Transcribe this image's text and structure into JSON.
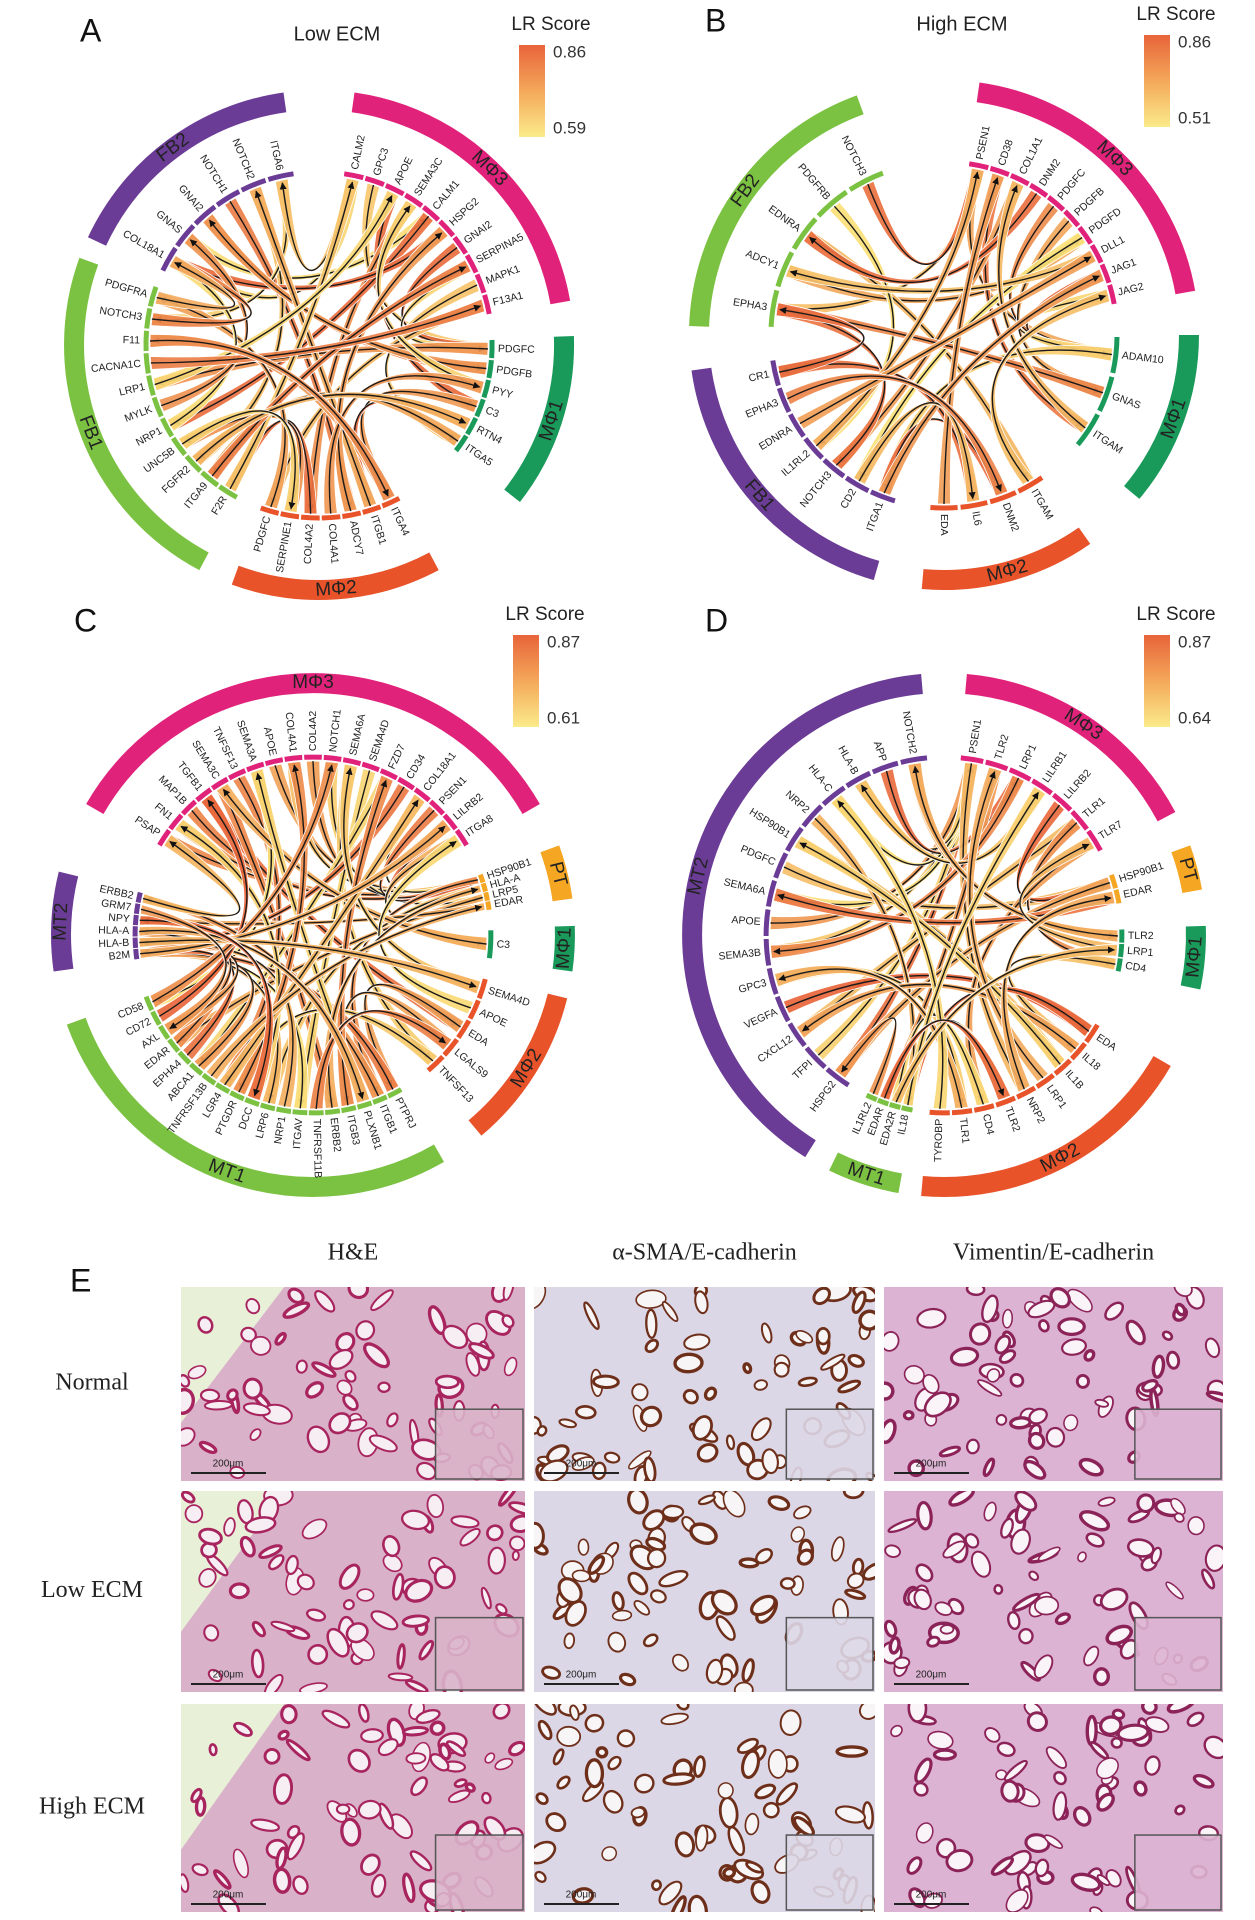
{
  "panels": [
    {
      "label": "A",
      "title": "Low ECM",
      "legend": {
        "title": "LR Score",
        "max": 0.86,
        "min": 0.59
      },
      "groups": [
        {
          "name": "FB2",
          "color": "#6b3c96",
          "genes": [
            "COL18A1",
            "GNAS",
            "GNAI2",
            "NOTCH1",
            "NOTCH2",
            "ITGA6"
          ]
        },
        {
          "name": "MΦ3",
          "color": "#e0227a",
          "genes": [
            "CALM2",
            "GPC3",
            "APOE",
            "SEMA3C",
            "CALM1",
            "HSPG2",
            "GNAI2",
            "SERPINA5",
            "MAPK1",
            "F13A1"
          ]
        },
        {
          "name": "MΦ1",
          "color": "#1a9a5a",
          "genes": [
            "PDGFC",
            "PDGFB",
            "PYY",
            "C3",
            "RTN4",
            "ITGA5"
          ]
        },
        {
          "name": "MΦ2",
          "color": "#e8532a",
          "genes": [
            "ITGA4",
            "ITGB1",
            "ADCY7",
            "COL4A1",
            "COL4A2",
            "SERPINE1",
            "PDGFC"
          ]
        },
        {
          "name": "FB1",
          "color": "#7cc242",
          "genes": [
            "F2R",
            "ITGA9",
            "FGFR2",
            "UNC5B",
            "NRP1",
            "MYLK",
            "LRP1",
            "CACNA1C",
            "F11",
            "NOTCH3",
            "PDGFRA"
          ]
        }
      ]
    },
    {
      "label": "B",
      "title": "High ECM",
      "legend": {
        "title": "LR Score",
        "max": 0.86,
        "min": 0.51
      },
      "groups": [
        {
          "name": "FB2",
          "color": "#7cc242",
          "genes": [
            "EPHA3",
            "ADCY1",
            "EDNRA",
            "PDGFRB",
            "NOTCH3"
          ]
        },
        {
          "name": "MΦ3",
          "color": "#e0227a",
          "genes": [
            "PSEN1",
            "CD38",
            "COL1A1",
            "DNM2",
            "PDGFC",
            "PDGFB",
            "PDGFD",
            "DLL1",
            "JAG1",
            "JAG2"
          ]
        },
        {
          "name": "MΦ1",
          "color": "#1a9a5a",
          "genes": [
            "ADAM10",
            "GNAS",
            "ITGAM"
          ]
        },
        {
          "name": "MΦ2",
          "color": "#e8532a",
          "genes": [
            "ITGAM",
            "DNM2",
            "IL6",
            "EDA"
          ]
        },
        {
          "name": "FB1",
          "color": "#6b3c96",
          "genes": [
            "ITGA1",
            "CD2",
            "NOTCH3",
            "IL1RL2",
            "EDNRA",
            "EPHA3",
            "CR1"
          ]
        }
      ]
    },
    {
      "label": "C",
      "legend": {
        "title": "LR Score",
        "max": 0.87,
        "min": 0.61
      },
      "groups": [
        {
          "name": "MΦ3",
          "color": "#e0227a",
          "genes": [
            "PSAP",
            "FN1",
            "MAP1B",
            "TGFB1",
            "SEMA3C",
            "TNFSF13",
            "SEMA3A",
            "APOE",
            "COL4A1",
            "COL4A2",
            "NOTCH1",
            "SEMA6A",
            "SEMA4D",
            "FZD7",
            "CD34",
            "COL18A1",
            "PSEN1",
            "LILRB2",
            "ITGA8"
          ]
        },
        {
          "name": "PT",
          "color": "#f5a623",
          "genes": [
            "HSP90B1",
            "HLA-A",
            "LRP5",
            "EDAR"
          ]
        },
        {
          "name": "MΦ1",
          "color": "#1a9a5a",
          "genes": [
            "C3"
          ]
        },
        {
          "name": "MΦ2",
          "color": "#e8532a",
          "genes": [
            "SEMA4D",
            "APOE",
            "EDA",
            "LGALS9",
            "TNFSF13"
          ]
        },
        {
          "name": "MT1",
          "color": "#7cc242",
          "genes": [
            "PTPRJ",
            "ITGB1",
            "PLXNB1",
            "ITGB3",
            "ERBB2",
            "TNFRSF11B",
            "ITGAV",
            "NRP1",
            "LRP6",
            "DCC",
            "PTGDR",
            "LGR4",
            "TNFRSF13B",
            "ABCA1",
            "EPHA4",
            "EDAR",
            "AXL",
            "CD72",
            "CD58"
          ]
        },
        {
          "name": "MT2",
          "color": "#6b3c96",
          "genes": [
            "B2M",
            "HLA-B",
            "HLA-A",
            "NPY",
            "GRM7",
            "ERBB2"
          ]
        }
      ]
    },
    {
      "label": "D",
      "legend": {
        "title": "LR Score",
        "max": 0.87,
        "min": 0.64
      },
      "groups": [
        {
          "name": "MT2",
          "color": "#6b3c96",
          "genes": [
            "HSPG2",
            "TFPI",
            "CXCL12",
            "VEGFA",
            "GPC3",
            "SEMA3B",
            "APOE",
            "SEMA6A",
            "PDGFC",
            "HSP90B1",
            "NRP2",
            "HLA-C",
            "HLA-B",
            "APP",
            "NOTCH2"
          ]
        },
        {
          "name": "MΦ3",
          "color": "#e0227a",
          "genes": [
            "PSEN1",
            "TLR2",
            "LRP1",
            "LILRB1",
            "LILRB2",
            "TLR1",
            "TLR7"
          ]
        },
        {
          "name": "PT",
          "color": "#f5a623",
          "genes": [
            "HSP90B1",
            "EDAR"
          ]
        },
        {
          "name": "MΦ1",
          "color": "#1a9a5a",
          "genes": [
            "TLR2",
            "LRP1",
            "CD4"
          ]
        },
        {
          "name": "MΦ2",
          "color": "#e8532a",
          "genes": [
            "EDA",
            "IL18",
            "IL1B",
            "LRP1",
            "NRP2",
            "TLR2",
            "CD4",
            "TLR1",
            "TYROBP"
          ]
        },
        {
          "name": "MT1",
          "color": "#7cc242",
          "genes": [
            "IL18",
            "EDA2R",
            "EDAR",
            "IL1RL2"
          ]
        }
      ]
    }
  ],
  "histology": {
    "label": "E",
    "columns": [
      "H&E",
      "α-SMA/E-cadherin",
      "Vimentin/E-cadherin"
    ],
    "rows": [
      "Normal",
      "Low ECM",
      "High ECM"
    ],
    "scale_bar": "200μm"
  }
}
